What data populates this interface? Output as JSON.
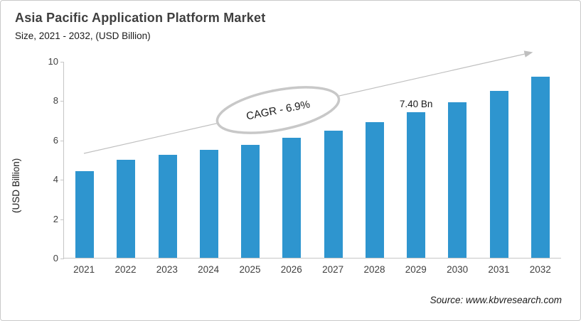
{
  "header": {
    "title": "Asia Pacific Application Platform Market",
    "subtitle": "Size, 2021 - 2032, (USD Billion)"
  },
  "chart_data": {
    "type": "bar",
    "title": "Asia Pacific Application Platform Market",
    "subtitle": "Size, 2021 - 2032, (USD Billion)",
    "categories": [
      "2021",
      "2022",
      "2023",
      "2024",
      "2025",
      "2026",
      "2027",
      "2028",
      "2029",
      "2030",
      "2031",
      "2032"
    ],
    "values": [
      4.4,
      5.0,
      5.25,
      5.5,
      5.75,
      6.1,
      6.45,
      6.9,
      7.4,
      7.9,
      8.5,
      9.2
    ],
    "xlabel": "",
    "ylabel": "(USD Billion)",
    "ylim": [
      0,
      10
    ],
    "yticks": [
      0,
      2,
      4,
      6,
      8,
      10
    ],
    "grid": false,
    "legend": "none",
    "bar_color": "#2e95cf",
    "data_label": {
      "category": "2029",
      "text": "7.40 Bn"
    },
    "annotation": {
      "text": "CAGR - 6.9%"
    }
  },
  "colors": {
    "bar": "#2e95cf",
    "axis": "#c6c6c6",
    "trend_arrow": "#bfbfbf",
    "ellipse_stroke": "#c8c8c8",
    "title_text": "#3f3f3f"
  },
  "footer": {
    "source": "Source: www.kbvresearch.com"
  }
}
